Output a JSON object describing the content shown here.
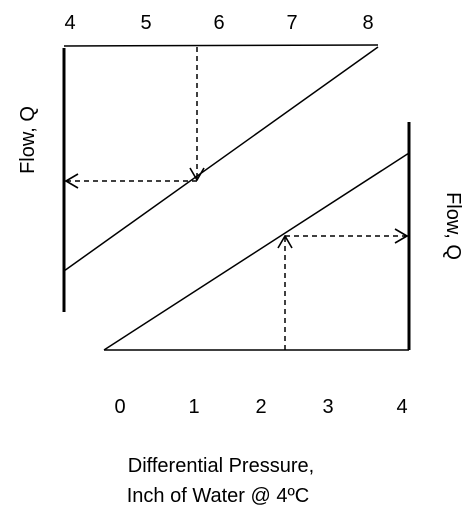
{
  "top_scale": {
    "ticks": [
      "4",
      "5",
      "6",
      "7",
      "8"
    ]
  },
  "bottom_scale": {
    "ticks": [
      "0",
      "1",
      "2",
      "3",
      "4"
    ]
  },
  "left_axis": {
    "label": "Flow, Q"
  },
  "right_axis": {
    "label": "Flow, Q"
  },
  "bottom_caption": {
    "line1": "Differential Pressure,",
    "line2": "Inch of Water @ 4ºC"
  },
  "colors": {
    "ink": "#000000",
    "background": "#ffffff"
  }
}
